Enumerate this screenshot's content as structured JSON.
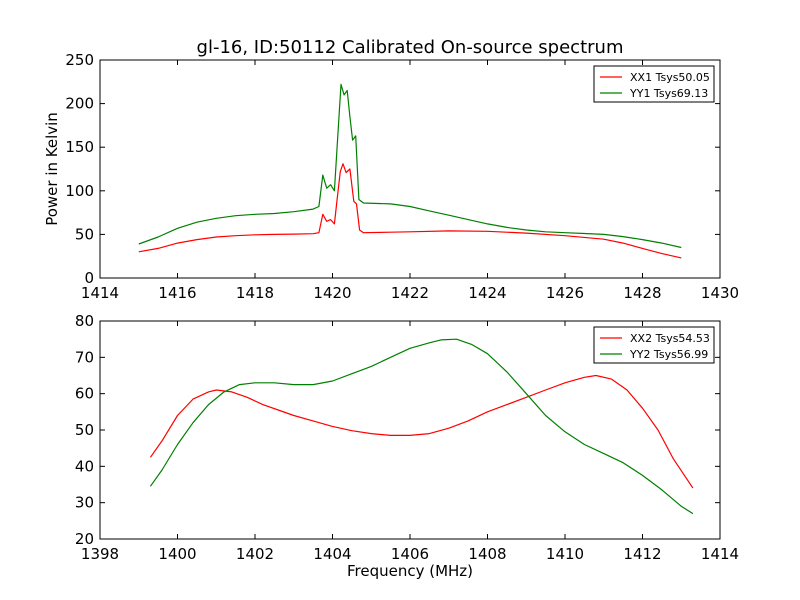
{
  "figure": {
    "title": "gl-16, ID:50112 Calibrated On-source spectrum"
  },
  "chart_data": [
    {
      "type": "line",
      "title": "gl-16, ID:50112 Calibrated On-source spectrum",
      "xlabel": "",
      "ylabel": "Power in Kelvin",
      "xlim": [
        1414,
        1430
      ],
      "ylim": [
        0,
        250
      ],
      "xticks": [
        1414,
        1416,
        1418,
        1420,
        1422,
        1424,
        1426,
        1428,
        1430
      ],
      "yticks": [
        0,
        50,
        100,
        150,
        200,
        250
      ],
      "grid": false,
      "legend_position": "top-right",
      "series": [
        {
          "name": "XX1 Tsys50.05",
          "color": "#ff0000",
          "points": [
            [
              1415.0,
              30
            ],
            [
              1415.5,
              34
            ],
            [
              1416.0,
              40
            ],
            [
              1416.5,
              44
            ],
            [
              1417.0,
              47
            ],
            [
              1417.5,
              48.5
            ],
            [
              1418.0,
              49.5
            ],
            [
              1418.5,
              50
            ],
            [
              1419.0,
              50.3
            ],
            [
              1419.5,
              50.8
            ],
            [
              1419.65,
              52
            ],
            [
              1419.75,
              73
            ],
            [
              1419.85,
              65
            ],
            [
              1419.95,
              67
            ],
            [
              1420.05,
              62
            ],
            [
              1420.12,
              90
            ],
            [
              1420.2,
              122
            ],
            [
              1420.27,
              131
            ],
            [
              1420.35,
              121
            ],
            [
              1420.45,
              125
            ],
            [
              1420.55,
              88
            ],
            [
              1420.62,
              85
            ],
            [
              1420.7,
              55
            ],
            [
              1420.8,
              52
            ],
            [
              1421.5,
              52.5
            ],
            [
              1422.0,
              53
            ],
            [
              1423.0,
              54
            ],
            [
              1424.0,
              53.5
            ],
            [
              1425.0,
              51.5
            ],
            [
              1426.0,
              48.5
            ],
            [
              1427.0,
              44.5
            ],
            [
              1427.5,
              40
            ],
            [
              1428.0,
              34
            ],
            [
              1428.5,
              28
            ],
            [
              1429.0,
              23
            ]
          ]
        },
        {
          "name": "YY1 Tsys69.13",
          "color": "#008000",
          "points": [
            [
              1415.0,
              39
            ],
            [
              1415.5,
              47
            ],
            [
              1416.0,
              57
            ],
            [
              1416.5,
              64
            ],
            [
              1417.0,
              68.5
            ],
            [
              1417.5,
              71.5
            ],
            [
              1418.0,
              73
            ],
            [
              1418.5,
              74
            ],
            [
              1419.0,
              76
            ],
            [
              1419.5,
              79
            ],
            [
              1419.65,
              82
            ],
            [
              1419.75,
              118
            ],
            [
              1419.85,
              103
            ],
            [
              1419.95,
              107
            ],
            [
              1420.05,
              100
            ],
            [
              1420.12,
              150
            ],
            [
              1420.22,
              222
            ],
            [
              1420.3,
              210
            ],
            [
              1420.38,
              215
            ],
            [
              1420.45,
              185
            ],
            [
              1420.52,
              158
            ],
            [
              1420.6,
              163
            ],
            [
              1420.68,
              90
            ],
            [
              1420.8,
              86
            ],
            [
              1421.5,
              85
            ],
            [
              1422.0,
              82
            ],
            [
              1422.5,
              77
            ],
            [
              1423.0,
              72
            ],
            [
              1423.5,
              67
            ],
            [
              1424.0,
              62
            ],
            [
              1424.5,
              58
            ],
            [
              1425.0,
              55
            ],
            [
              1425.5,
              53
            ],
            [
              1426.0,
              52
            ],
            [
              1426.5,
              51
            ],
            [
              1427.0,
              50
            ],
            [
              1427.5,
              47.5
            ],
            [
              1428.0,
              44
            ],
            [
              1428.5,
              40
            ],
            [
              1429.0,
              35
            ]
          ]
        }
      ]
    },
    {
      "type": "line",
      "title": "",
      "xlabel": "Frequency (MHz)",
      "ylabel": "",
      "xlim": [
        1398,
        1414
      ],
      "ylim": [
        20,
        80
      ],
      "xticks": [
        1398,
        1400,
        1402,
        1404,
        1406,
        1408,
        1410,
        1412,
        1414
      ],
      "yticks": [
        20,
        30,
        40,
        50,
        60,
        70,
        80
      ],
      "grid": false,
      "legend_position": "top-right",
      "series": [
        {
          "name": "XX2 Tsys54.53",
          "color": "#ff0000",
          "points": [
            [
              1399.3,
              42.5
            ],
            [
              1399.6,
              47
            ],
            [
              1400.0,
              54
            ],
            [
              1400.4,
              58.5
            ],
            [
              1400.8,
              60.5
            ],
            [
              1401.0,
              61
            ],
            [
              1401.4,
              60.5
            ],
            [
              1401.8,
              59
            ],
            [
              1402.2,
              57
            ],
            [
              1402.6,
              55.5
            ],
            [
              1403.0,
              54
            ],
            [
              1403.5,
              52.5
            ],
            [
              1404.0,
              51
            ],
            [
              1404.5,
              49.8
            ],
            [
              1405.0,
              49
            ],
            [
              1405.5,
              48.5
            ],
            [
              1406.0,
              48.5
            ],
            [
              1406.5,
              49
            ],
            [
              1407.0,
              50.5
            ],
            [
              1407.5,
              52.5
            ],
            [
              1408.0,
              55
            ],
            [
              1408.5,
              57
            ],
            [
              1409.0,
              59
            ],
            [
              1409.5,
              61
            ],
            [
              1410.0,
              63
            ],
            [
              1410.5,
              64.5
            ],
            [
              1410.8,
              65
            ],
            [
              1411.2,
              64
            ],
            [
              1411.6,
              61
            ],
            [
              1412.0,
              56
            ],
            [
              1412.4,
              50
            ],
            [
              1412.8,
              42
            ],
            [
              1413.3,
              34
            ]
          ]
        },
        {
          "name": "YY2 Tsys56.99",
          "color": "#008000",
          "points": [
            [
              1399.3,
              34.5
            ],
            [
              1399.6,
              39
            ],
            [
              1400.0,
              46
            ],
            [
              1400.4,
              52
            ],
            [
              1400.8,
              57
            ],
            [
              1401.2,
              60.5
            ],
            [
              1401.6,
              62.5
            ],
            [
              1402.0,
              63
            ],
            [
              1402.5,
              63
            ],
            [
              1403.0,
              62.5
            ],
            [
              1403.5,
              62.5
            ],
            [
              1404.0,
              63.5
            ],
            [
              1404.5,
              65.5
            ],
            [
              1405.0,
              67.5
            ],
            [
              1405.5,
              70
            ],
            [
              1406.0,
              72.5
            ],
            [
              1406.5,
              74
            ],
            [
              1406.8,
              74.8
            ],
            [
              1407.2,
              75
            ],
            [
              1407.6,
              73.5
            ],
            [
              1408.0,
              71
            ],
            [
              1408.5,
              66
            ],
            [
              1409.0,
              60
            ],
            [
              1409.5,
              54
            ],
            [
              1410.0,
              49.5
            ],
            [
              1410.5,
              46
            ],
            [
              1411.0,
              43.5
            ],
            [
              1411.5,
              41
            ],
            [
              1412.0,
              37.5
            ],
            [
              1412.5,
              33.5
            ],
            [
              1413.0,
              29
            ],
            [
              1413.3,
              27
            ]
          ]
        }
      ]
    }
  ]
}
